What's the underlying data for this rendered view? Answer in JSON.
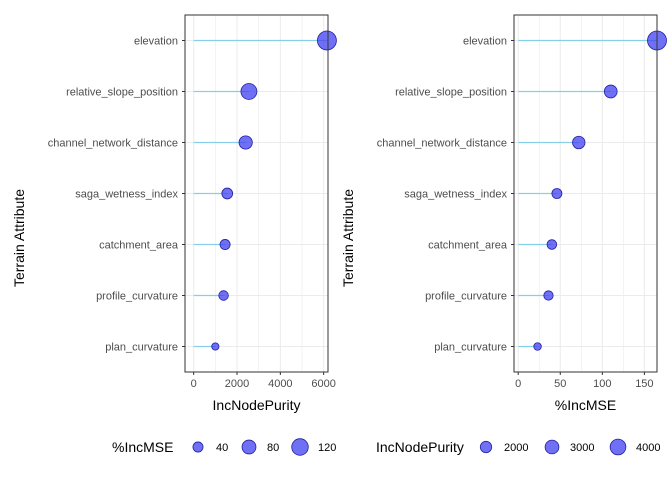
{
  "chart_data": [
    {
      "type": "scatter",
      "subtype": "lollipop",
      "xlabel": "IncNodePurity",
      "ylabel": "Terrain Attribute",
      "xlim": [
        -400,
        6200
      ],
      "xticks": [
        0,
        2000,
        4000,
        6000
      ],
      "xtick_labels": [
        "0",
        "2000",
        "4000",
        "6000"
      ],
      "categories": [
        "elevation",
        "relative_slope_position",
        "channel_network_distance",
        "saga_wetness_index",
        "catchment_area",
        "profile_curvature",
        "plan_curvature"
      ],
      "x": [
        6150,
        2550,
        2400,
        1550,
        1450,
        1380,
        1000
      ],
      "size_var": "%IncMSE",
      "size_values": [
        165,
        110,
        72,
        46,
        40,
        36,
        23
      ],
      "legend": {
        "title": "%IncMSE",
        "labels": [
          "40",
          "80",
          "120"
        ],
        "values": [
          40,
          80,
          120
        ],
        "placement": "bottom"
      },
      "grid": true
    },
    {
      "type": "scatter",
      "subtype": "lollipop",
      "xlabel": "%IncMSE",
      "ylabel": "Terrain Attribute",
      "xlim": [
        -5,
        165
      ],
      "xticks": [
        0,
        50,
        100,
        150
      ],
      "xtick_labels": [
        "0",
        "50",
        "100",
        "150"
      ],
      "categories": [
        "elevation",
        "relative_slope_position",
        "channel_network_distance",
        "saga_wetness_index",
        "catchment_area",
        "profile_curvature",
        "plan_curvature"
      ],
      "x": [
        165,
        110,
        72,
        46,
        40,
        36,
        23
      ],
      "size_var": "IncNodePurity",
      "size_values": [
        6150,
        2550,
        2400,
        1550,
        1450,
        1380,
        1000
      ],
      "legend": {
        "title": "IncNodePurity",
        "labels": [
          "2000",
          "3000",
          "4000"
        ],
        "values": [
          2000,
          3000,
          4000
        ],
        "placement": "bottom"
      },
      "grid": true
    }
  ],
  "colors": {
    "point_fill": "#4040f0",
    "point_stroke": "#2020a0",
    "segment": "#87ceeb",
    "grid": "#ebebeb",
    "panel_border": "#333333"
  }
}
